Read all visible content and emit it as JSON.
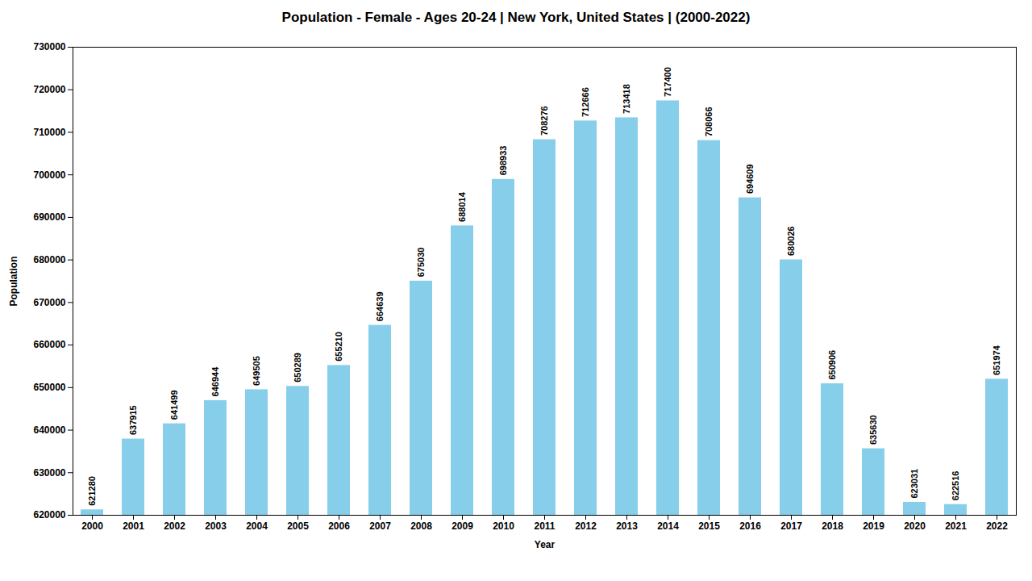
{
  "chart_data": {
    "type": "bar",
    "title": "Population - Female - Ages 20-24 | New York, United States |  (2000-2022)",
    "xlabel": "Year",
    "ylabel": "Population",
    "categories": [
      "2000",
      "2001",
      "2002",
      "2003",
      "2004",
      "2005",
      "2006",
      "2007",
      "2008",
      "2009",
      "2010",
      "2011",
      "2012",
      "2013",
      "2014",
      "2015",
      "2016",
      "2017",
      "2018",
      "2019",
      "2020",
      "2021",
      "2022"
    ],
    "values": [
      621280,
      637915,
      641499,
      646944,
      649505,
      650289,
      655210,
      664639,
      675030,
      688014,
      698933,
      708276,
      712666,
      713418,
      717400,
      708066,
      694609,
      680026,
      650906,
      635630,
      623031,
      622516,
      651974
    ],
    "color": "#87ceeb",
    "ylim": [
      620000,
      730000
    ],
    "yticks": [
      620000,
      630000,
      640000,
      650000,
      660000,
      670000,
      680000,
      690000,
      700000,
      710000,
      720000,
      730000
    ],
    "grid": false,
    "data_labels": true
  }
}
